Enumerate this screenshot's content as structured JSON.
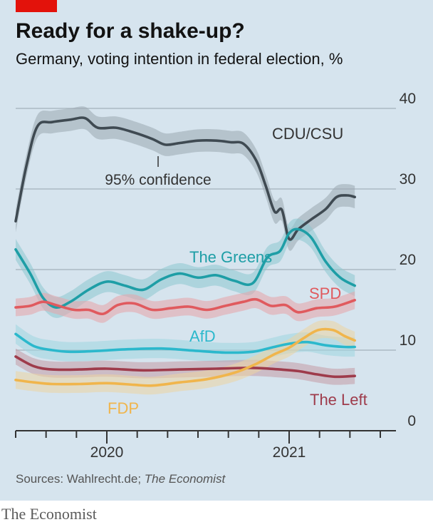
{
  "title": "Ready for a shake-up?",
  "subtitle": "Germany, voting intention in federal election, %",
  "source_prefix": "Sources: Wahlrecht.de;",
  "source_italic": "The Economist",
  "brand": "The Economist",
  "chart_data": {
    "type": "line",
    "y_axis": {
      "min": 0,
      "max": 40,
      "ticks": [
        "0",
        "10",
        "20",
        "30",
        "40"
      ],
      "position": "right"
    },
    "x_axis": {
      "range": [
        2019.5,
        2021.5
      ],
      "labels": [
        {
          "text": "2020",
          "x": 2020.0
        },
        {
          "text": "2021",
          "x": 2021.0
        }
      ]
    },
    "confidence_label": "95% confidence",
    "colors": {
      "background": "#d6e4ee",
      "accent": "#e3120b"
    },
    "series": [
      {
        "name": "CDU/CSU",
        "color": "#3f4a52",
        "band_color": "#9aa7b0",
        "band": 1.4,
        "points": [
          [
            2019.5,
            26
          ],
          [
            2019.56,
            33
          ],
          [
            2019.62,
            37.8
          ],
          [
            2019.7,
            38.3
          ],
          [
            2019.8,
            38.6
          ],
          [
            2019.88,
            38.8
          ],
          [
            2019.95,
            37.6
          ],
          [
            2020.05,
            37.6
          ],
          [
            2020.15,
            37.0
          ],
          [
            2020.25,
            36.2
          ],
          [
            2020.32,
            35.5
          ],
          [
            2020.4,
            35.7
          ],
          [
            2020.5,
            36.0
          ],
          [
            2020.6,
            36.0
          ],
          [
            2020.68,
            35.8
          ],
          [
            2020.75,
            35.6
          ],
          [
            2020.82,
            33.5
          ],
          [
            2020.87,
            30.5
          ],
          [
            2020.92,
            27.2
          ],
          [
            2020.96,
            27.4
          ],
          [
            2021.0,
            23.8
          ],
          [
            2021.05,
            25.0
          ],
          [
            2021.12,
            26.2
          ],
          [
            2021.2,
            27.5
          ],
          [
            2021.26,
            29.0
          ],
          [
            2021.32,
            29.2
          ],
          [
            2021.36,
            29.0
          ]
        ]
      },
      {
        "name": "The Greens",
        "color": "#1e9ea6",
        "band_color": "#8cc7cf",
        "band": 1.3,
        "points": [
          [
            2019.5,
            22.5
          ],
          [
            2019.58,
            19.5
          ],
          [
            2019.65,
            16.5
          ],
          [
            2019.72,
            15.3
          ],
          [
            2019.8,
            16.0
          ],
          [
            2019.9,
            17.5
          ],
          [
            2020.0,
            18.5
          ],
          [
            2020.1,
            18.0
          ],
          [
            2020.2,
            17.5
          ],
          [
            2020.3,
            18.8
          ],
          [
            2020.4,
            19.5
          ],
          [
            2020.5,
            19.0
          ],
          [
            2020.6,
            19.3
          ],
          [
            2020.7,
            18.6
          ],
          [
            2020.8,
            18.3
          ],
          [
            2020.88,
            21.5
          ],
          [
            2020.95,
            22.3
          ],
          [
            2021.0,
            24.5
          ],
          [
            2021.05,
            25.0
          ],
          [
            2021.12,
            24.0
          ],
          [
            2021.2,
            21.0
          ],
          [
            2021.28,
            19.0
          ],
          [
            2021.36,
            18.0
          ]
        ]
      },
      {
        "name": "SPD",
        "color": "#e05a5e",
        "band_color": "#e8a3a8",
        "band": 1.1,
        "points": [
          [
            2019.5,
            15.3
          ],
          [
            2019.58,
            15.5
          ],
          [
            2019.65,
            16.0
          ],
          [
            2019.72,
            15.6
          ],
          [
            2019.82,
            15.0
          ],
          [
            2019.9,
            15.0
          ],
          [
            2019.98,
            14.5
          ],
          [
            2020.06,
            15.6
          ],
          [
            2020.15,
            15.8
          ],
          [
            2020.25,
            15.0
          ],
          [
            2020.35,
            15.2
          ],
          [
            2020.45,
            15.4
          ],
          [
            2020.55,
            15.0
          ],
          [
            2020.65,
            15.5
          ],
          [
            2020.75,
            16.0
          ],
          [
            2020.82,
            16.3
          ],
          [
            2020.9,
            15.5
          ],
          [
            2020.98,
            15.6
          ],
          [
            2021.05,
            14.7
          ],
          [
            2021.15,
            15.2
          ],
          [
            2021.25,
            15.4
          ],
          [
            2021.36,
            16.2
          ]
        ]
      },
      {
        "name": "AfD",
        "color": "#2bb8cc",
        "band_color": "#9fd6e0",
        "band": 1.2,
        "points": [
          [
            2019.5,
            12.0
          ],
          [
            2019.6,
            10.5
          ],
          [
            2019.7,
            10.0
          ],
          [
            2019.8,
            9.8
          ],
          [
            2019.95,
            9.9
          ],
          [
            2020.1,
            10.1
          ],
          [
            2020.3,
            10.2
          ],
          [
            2020.5,
            9.9
          ],
          [
            2020.65,
            9.7
          ],
          [
            2020.8,
            9.8
          ],
          [
            2020.9,
            10.3
          ],
          [
            2021.0,
            10.8
          ],
          [
            2021.1,
            11.0
          ],
          [
            2021.2,
            10.6
          ],
          [
            2021.3,
            10.4
          ],
          [
            2021.36,
            10.4
          ]
        ]
      },
      {
        "name": "The Left",
        "color": "#9e3b4b",
        "band_color": "#c49aa5",
        "band": 1.0,
        "points": [
          [
            2019.5,
            9.2
          ],
          [
            2019.6,
            8.0
          ],
          [
            2019.7,
            7.6
          ],
          [
            2019.85,
            7.6
          ],
          [
            2020.0,
            7.7
          ],
          [
            2020.2,
            7.5
          ],
          [
            2020.4,
            7.6
          ],
          [
            2020.6,
            7.7
          ],
          [
            2020.8,
            7.8
          ],
          [
            2020.95,
            7.6
          ],
          [
            2021.05,
            7.4
          ],
          [
            2021.15,
            7.0
          ],
          [
            2021.25,
            6.7
          ],
          [
            2021.36,
            6.8
          ]
        ]
      },
      {
        "name": "FDP",
        "color": "#f0b54c",
        "band_color": "#edd3a2",
        "band": 1.1,
        "points": [
          [
            2019.5,
            6.3
          ],
          [
            2019.6,
            6.0
          ],
          [
            2019.7,
            5.8
          ],
          [
            2019.85,
            5.8
          ],
          [
            2020.0,
            5.9
          ],
          [
            2020.15,
            5.7
          ],
          [
            2020.25,
            5.6
          ],
          [
            2020.4,
            6.0
          ],
          [
            2020.55,
            6.4
          ],
          [
            2020.7,
            7.2
          ],
          [
            2020.82,
            8.3
          ],
          [
            2020.92,
            9.5
          ],
          [
            2021.0,
            10.3
          ],
          [
            2021.08,
            11.5
          ],
          [
            2021.16,
            12.5
          ],
          [
            2021.24,
            12.5
          ],
          [
            2021.3,
            11.8
          ],
          [
            2021.36,
            11.2
          ]
        ]
      }
    ]
  }
}
